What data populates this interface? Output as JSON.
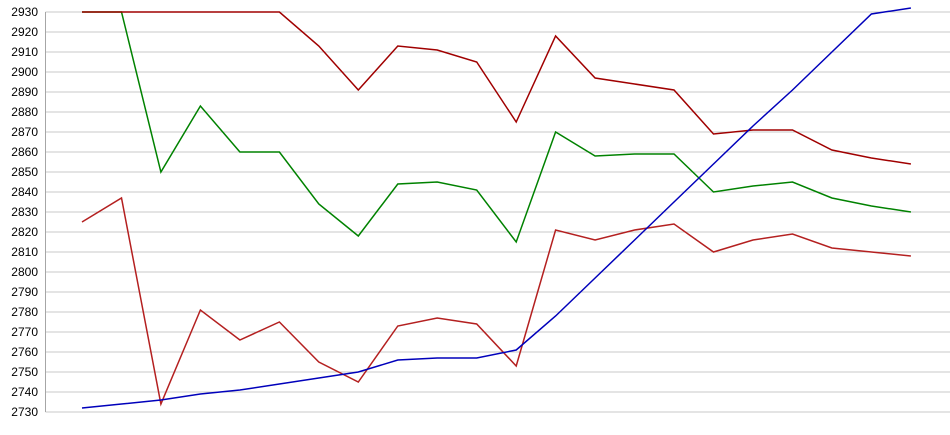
{
  "chart_data": {
    "type": "line",
    "title": "",
    "legend": "none",
    "grid": true,
    "x_axis_labels_visible": false,
    "points_per_series": 22,
    "background_color": "#ffffff",
    "grid_color": "#c9c9c9",
    "axis_line_color": "#a6a6a6",
    "tick_label_color": "#000000",
    "y_axis": {
      "min": 2730,
      "max": 2930,
      "tick_step": 10,
      "tick_labels": [
        "2930",
        "2920",
        "2910",
        "2900",
        "2890",
        "2880",
        "2870",
        "2860",
        "2850",
        "2840",
        "2830",
        "2820",
        "2810",
        "2800",
        "2790",
        "2780",
        "2770",
        "2760",
        "2750",
        "2740",
        "2730"
      ]
    },
    "series": [
      {
        "name": "green-line",
        "color": "#008200",
        "values": [
          2930,
          2930,
          2850,
          2883,
          2860,
          2860,
          2834,
          2818,
          2844,
          2845,
          2841,
          2815,
          2870,
          2858,
          2859,
          2859,
          2840,
          2843,
          2845,
          2837,
          2833,
          2830
        ]
      },
      {
        "name": "dark-red-top-line",
        "color": "#a00000",
        "values": [
          2930,
          2930,
          2930,
          2930,
          2930,
          2930,
          2913,
          2891,
          2913,
          2911,
          2905,
          2875,
          2918,
          2897,
          2894,
          2891,
          2869,
          2871,
          2871,
          2861,
          2857,
          2854
        ]
      },
      {
        "name": "red-lower-line",
        "color": "#b42020",
        "values": [
          2825,
          2837,
          2734,
          2781,
          2766,
          2775,
          2755,
          2745,
          2773,
          2777,
          2774,
          2753,
          2821,
          2816,
          2821,
          2824,
          2810,
          2816,
          2819,
          2812,
          2810,
          2808
        ]
      },
      {
        "name": "blue-line",
        "color": "#0000bb",
        "values": [
          2732,
          2734,
          2736,
          2739,
          2741,
          2744,
          2747,
          2750,
          2756,
          2757,
          2757,
          2761,
          2778,
          2797,
          2816,
          2835,
          2854,
          2873,
          2891,
          2910,
          2929,
          2932
        ]
      }
    ]
  }
}
